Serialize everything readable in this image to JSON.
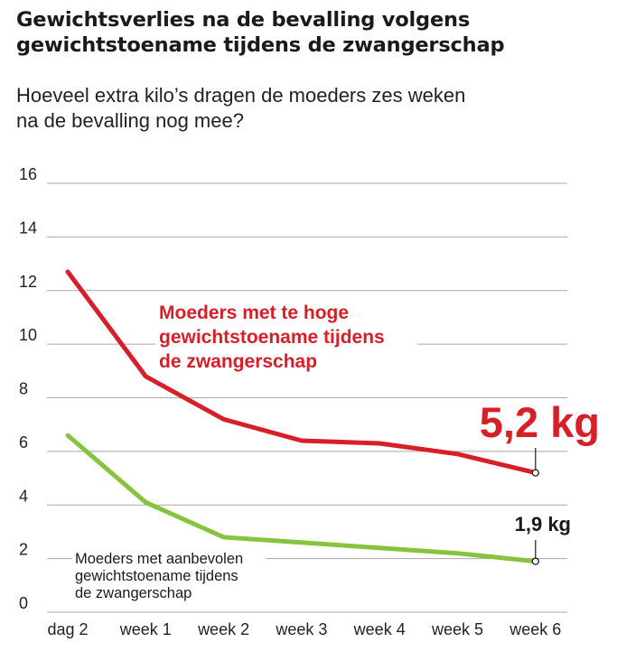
{
  "title_lines": [
    "Gewichtsverlies na de bevalling volgens",
    "gewichtstoename tijdens de zwangerschap"
  ],
  "subtitle_lines": [
    "Hoeveel extra kilo’s dragen de moeders zes weken",
    "na de bevalling nog mee?"
  ],
  "chart_data": {
    "type": "line",
    "categories": [
      "dag 2",
      "week 1",
      "week 2",
      "week 3",
      "week 4",
      "week 5",
      "week 6"
    ],
    "ylim": [
      0,
      16
    ],
    "yticks": [
      "0",
      "2",
      "4",
      "6",
      "8",
      "10",
      "12",
      "14",
      "16"
    ],
    "grid": true,
    "series": [
      {
        "name_lines": [
          "Moeders met te hoge",
          "gewichtstoename tijdens",
          "de zwangerschap"
        ],
        "color": "#d71f28",
        "values": [
          12.7,
          8.8,
          7.2,
          6.4,
          6.3,
          5.9,
          5.2
        ],
        "end_label": "5,2 kg"
      },
      {
        "name_lines": [
          "Moeders met aanbevolen",
          "gewichtstoename tijdens",
          "de zwangerschap"
        ],
        "color": "#86c440",
        "values": [
          6.6,
          4.1,
          2.8,
          2.6,
          2.4,
          2.2,
          1.9
        ],
        "end_label": "1,9 kg"
      }
    ]
  }
}
